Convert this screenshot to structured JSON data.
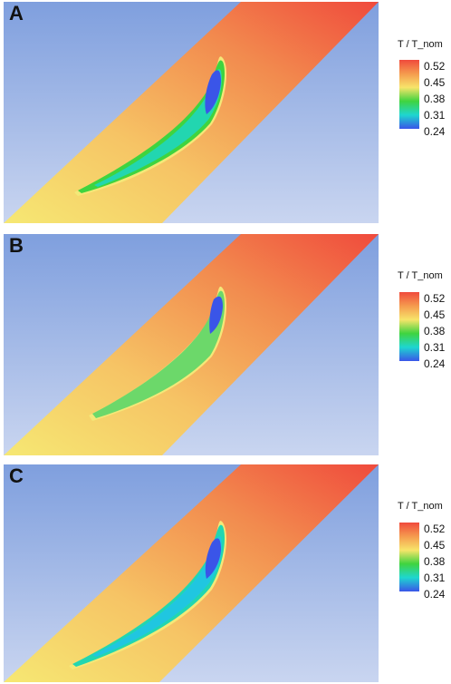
{
  "panels": [
    {
      "label": "A"
    },
    {
      "label": "B"
    },
    {
      "label": "C"
    }
  ],
  "legend": {
    "title": "T / T_nom",
    "ticks": [
      "0.52",
      "0.45",
      "0.38",
      "0.31",
      "0.24"
    ]
  },
  "colors": {
    "background_gradient_top": "#7f9fde",
    "background_gradient_bottom": "#c9d5f0",
    "hot": "#f0503c",
    "warm": "#f5c860",
    "mid": "#3fd43f",
    "cool": "#18d0d0",
    "cold": "#3a55e8"
  }
}
